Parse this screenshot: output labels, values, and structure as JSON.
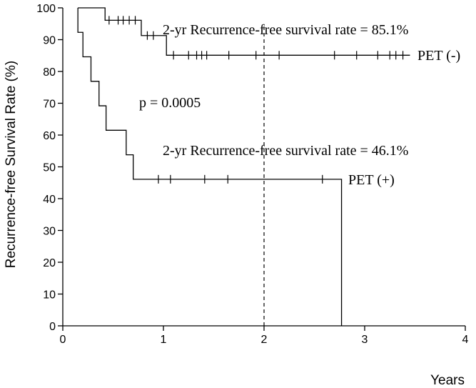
{
  "chart_data": {
    "type": "line",
    "xlabel": "Years",
    "ylabel": "Recurrence-free Survival Rate (%)",
    "xlim": [
      0,
      4
    ],
    "ylim": [
      0,
      100
    ],
    "x_ticks": [
      "0",
      "1",
      "2",
      "3",
      "4"
    ],
    "y_ticks": [
      "0",
      "10",
      "20",
      "30",
      "40",
      "50",
      "60",
      "70",
      "80",
      "90",
      "100"
    ],
    "grid": false,
    "reference_line_x": 2,
    "series": [
      {
        "name": "PET (-)",
        "label": "PET (-)",
        "steps": [
          [
            0.15,
            100
          ],
          [
            0.42,
            96.1
          ],
          [
            0.78,
            91.3
          ],
          [
            1.03,
            85.1
          ],
          [
            3.45,
            85.1
          ]
        ],
        "censored": [
          [
            0.46,
            96.1
          ],
          [
            0.55,
            96.1
          ],
          [
            0.6,
            96.1
          ],
          [
            0.66,
            96.1
          ],
          [
            0.72,
            96.1
          ],
          [
            0.84,
            91.3
          ],
          [
            0.9,
            91.3
          ],
          [
            1.1,
            85.1
          ],
          [
            1.25,
            85.1
          ],
          [
            1.33,
            85.1
          ],
          [
            1.38,
            85.1
          ],
          [
            1.43,
            85.1
          ],
          [
            1.65,
            85.1
          ],
          [
            1.92,
            85.1
          ],
          [
            2.15,
            85.1
          ],
          [
            2.7,
            85.1
          ],
          [
            2.92,
            85.1
          ],
          [
            3.13,
            85.1
          ],
          [
            3.25,
            85.1
          ],
          [
            3.31,
            85.1
          ],
          [
            3.38,
            85.1
          ]
        ]
      },
      {
        "name": "PET (+)",
        "label": "PET (+)",
        "steps": [
          [
            0.15,
            100
          ],
          [
            0.15,
            92.3
          ],
          [
            0.2,
            84.6
          ],
          [
            0.28,
            76.9
          ],
          [
            0.36,
            69.2
          ],
          [
            0.43,
            61.5
          ],
          [
            0.63,
            53.8
          ],
          [
            0.7,
            46.1
          ],
          [
            2.77,
            0
          ]
        ],
        "censored": [
          [
            0.95,
            46.1
          ],
          [
            1.07,
            46.1
          ],
          [
            1.41,
            46.1
          ],
          [
            1.64,
            46.1
          ],
          [
            2.58,
            46.1
          ]
        ]
      }
    ],
    "annotations": {
      "rate_neg": "2-yr Recurrence-free survival rate = 85.1%",
      "rate_pos": "2-yr Recurrence-free survival rate = 46.1%",
      "p_value": "p = 0.0005"
    }
  }
}
